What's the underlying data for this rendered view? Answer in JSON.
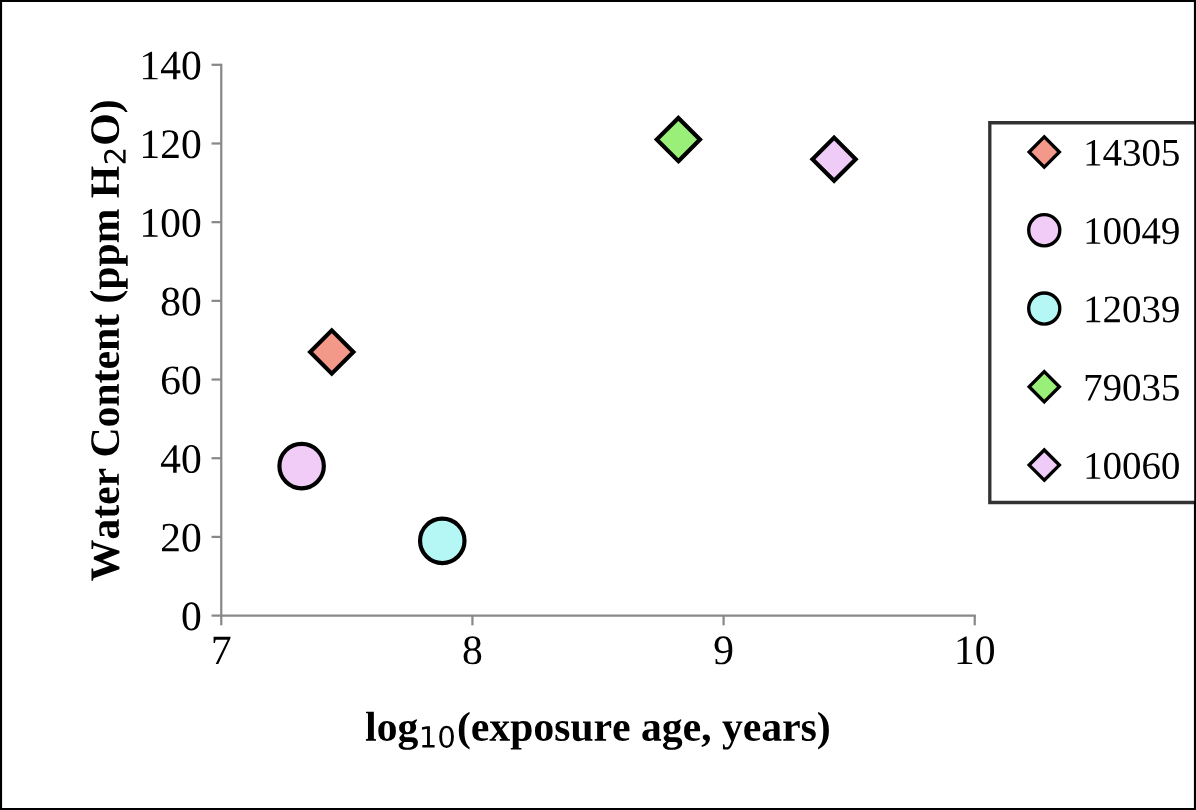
{
  "chart_data": {
    "type": "scatter",
    "xlabel": "log$_{10}$(exposure age, years)",
    "ylabel": "Water Content (ppm H$_{2}$O)",
    "xlim": [
      7,
      10
    ],
    "xticks": [
      7,
      8,
      9,
      10
    ],
    "ylim": [
      0,
      140
    ],
    "yticks": [
      0,
      20,
      40,
      60,
      80,
      100,
      120,
      140
    ],
    "grid": false,
    "legend": "right",
    "series": [
      {
        "name": "14305",
        "color": "#f4998a",
        "marker": "diamond",
        "x": [
          7.44
        ],
        "values": [
          67
        ]
      },
      {
        "name": "10049",
        "color": "#f0ccf7",
        "marker": "circle",
        "x": [
          7.32
        ],
        "values": [
          38
        ]
      },
      {
        "name": "12039",
        "color": "#b4f7f5",
        "marker": "circle",
        "x": [
          7.88
        ],
        "values": [
          19
        ]
      },
      {
        "name": "79035",
        "color": "#99ef77",
        "marker": "diamond",
        "x": [
          8.82
        ],
        "values": [
          121
        ]
      },
      {
        "name": "10060",
        "color": "#eeccf7",
        "marker": "diamond",
        "x": [
          9.44
        ],
        "values": [
          116
        ]
      }
    ]
  }
}
